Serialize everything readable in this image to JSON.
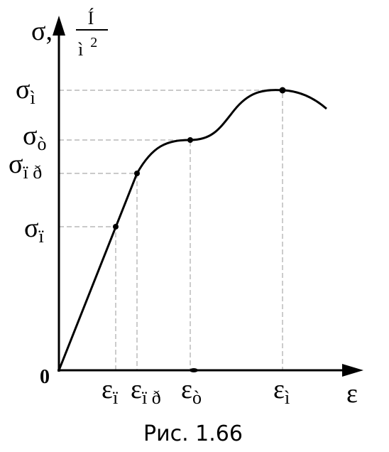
{
  "y_axis": {
    "symbol": "σ,",
    "unit_numerator": "Í",
    "unit_denominator": "ì",
    "unit_exponent": "2"
  },
  "x_axis": {
    "symbol": "ε"
  },
  "origin": "0",
  "y_labels": [
    {
      "symbol": "σ",
      "subscript": "ì"
    },
    {
      "symbol": "σ",
      "subscript": "ò"
    },
    {
      "symbol": "σ",
      "subscript": "ï ð"
    },
    {
      "symbol": "σ",
      "subscript": "ï"
    }
  ],
  "x_labels": [
    {
      "symbol": "ε",
      "subscript": "ï"
    },
    {
      "symbol": "ε",
      "subscript": "ï ð"
    },
    {
      "symbol": "ε",
      "subscript": "ò"
    },
    {
      "symbol": "ε",
      "subscript": "ì"
    }
  ],
  "caption": "Рис. 1.66"
}
